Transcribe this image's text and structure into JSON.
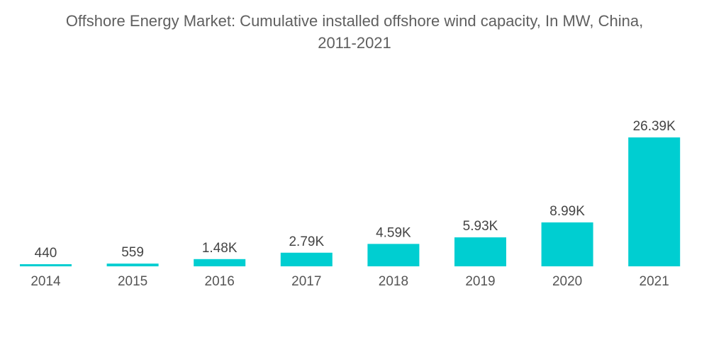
{
  "chart_data": {
    "type": "bar",
    "title_lines": [
      "Offshore Energy Market: Cumulative installed offshore wind capacity, In MW, China,",
      "2011-2021"
    ],
    "title": "Offshore Energy Market: Cumulative installed offshore wind capacity, In MW, China, 2011-2021",
    "categories": [
      "2014",
      "2015",
      "2016",
      "2017",
      "2018",
      "2019",
      "2020",
      "2021"
    ],
    "values": [
      440,
      559,
      1480,
      2790,
      4590,
      5930,
      8990,
      26390
    ],
    "labels": [
      "440",
      "559",
      "1.48K",
      "2.79K",
      "4.59K",
      "5.93K",
      "8.99K",
      "26.39K"
    ],
    "xlabel": "",
    "ylabel": "",
    "ylim": [
      0,
      26390
    ],
    "grid": false,
    "legend": "none",
    "bar_color": "#00CED1"
  }
}
